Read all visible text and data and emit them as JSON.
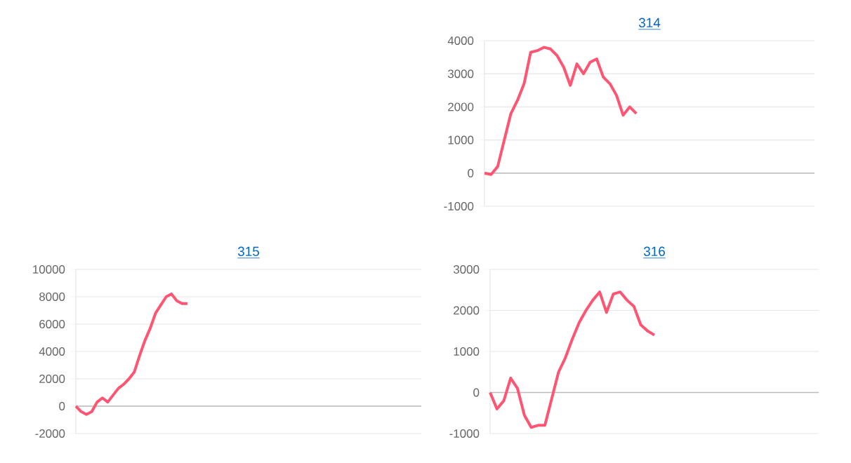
{
  "chart_data": [
    {
      "type": "line",
      "title": "314",
      "categories": [
        null,
        null,
        null,
        null,
        null,
        null,
        null,
        null,
        null,
        null,
        null,
        null,
        null,
        null,
        null,
        null,
        null,
        null,
        null,
        null,
        null,
        null,
        null,
        null,
        null,
        null,
        null,
        null,
        null,
        null,
        null,
        null,
        null,
        null,
        null,
        null,
        null,
        null,
        null,
        null,
        null,
        null,
        null,
        null,
        null,
        null,
        null,
        null,
        null,
        null,
        null
      ],
      "series": [
        {
          "color": "#ff5573",
          "values": [
            0,
            -40,
            200,
            1000,
            1800,
            2200,
            2700,
            3650,
            3700,
            3800,
            3750,
            3550,
            3200,
            2650,
            3300,
            3000,
            3350,
            3450,
            2900,
            2700,
            2350,
            1750,
            2000,
            1800,
            null,
            null,
            null,
            null,
            null,
            null,
            null,
            null,
            null,
            null,
            null,
            null,
            null,
            null,
            null,
            null,
            null,
            null,
            null,
            null,
            null,
            null,
            null,
            null,
            null,
            null,
            null
          ]
        }
      ],
      "ylim": [
        -1000,
        4000
      ],
      "yticks": [
        -1000,
        0,
        1000,
        2000,
        3000,
        4000
      ],
      "grid": "y",
      "tick_labels": "y"
    },
    {
      "type": "line",
      "title": "315",
      "categories": [
        null,
        null,
        null,
        null,
        null,
        null,
        null,
        null,
        null,
        null,
        null,
        null,
        null,
        null,
        null,
        null,
        null,
        null,
        null,
        null,
        null,
        null,
        null,
        null,
        null,
        null,
        null,
        null,
        null,
        null,
        null,
        null,
        null,
        null,
        null,
        null,
        null,
        null,
        null,
        null,
        null,
        null,
        null,
        null,
        null,
        null,
        null,
        null,
        null,
        null,
        null,
        null,
        null,
        null,
        null,
        null,
        null,
        null,
        null,
        null,
        null,
        null,
        null,
        null,
        null,
        null
      ],
      "series": [
        {
          "color": "#ff5573",
          "values": [
            0,
            -400,
            -600,
            -400,
            300,
            600,
            300,
            800,
            1300,
            1600,
            2000,
            2500,
            3700,
            4800,
            5700,
            6800,
            7400,
            8000,
            8200,
            7700,
            7500,
            7500,
            null,
            null,
            null,
            null,
            null,
            null,
            null,
            null,
            null,
            null,
            null,
            null,
            null,
            null,
            null,
            null,
            null,
            null,
            null,
            null,
            null,
            null,
            null,
            null,
            null,
            null,
            null,
            null,
            null,
            null,
            null,
            null,
            null,
            null,
            null,
            null,
            null,
            null,
            null,
            null,
            null,
            null,
            null,
            null
          ]
        }
      ],
      "ylim": [
        -2000,
        10000
      ],
      "yticks": [
        -2000,
        0,
        2000,
        4000,
        6000,
        8000,
        10000
      ],
      "grid": "y",
      "tick_labels": "y"
    },
    {
      "type": "line",
      "title": "316",
      "categories": [
        null,
        null,
        null,
        null,
        null,
        null,
        null,
        null,
        null,
        null,
        null,
        null,
        null,
        null,
        null,
        null,
        null,
        null,
        null,
        null,
        null,
        null,
        null,
        null,
        null,
        null,
        null,
        null,
        null,
        null,
        null,
        null,
        null,
        null,
        null,
        null,
        null,
        null,
        null,
        null,
        null,
        null,
        null,
        null,
        null,
        null,
        null,
        null,
        null
      ],
      "series": [
        {
          "color": "#ff5573",
          "values": [
            0,
            -400,
            -200,
            350,
            100,
            -550,
            -850,
            -800,
            -800,
            -150,
            500,
            850,
            1300,
            1700,
            2000,
            2250,
            2450,
            1950,
            2400,
            2450,
            2250,
            2100,
            1650,
            1500,
            1400,
            null,
            null,
            null,
            null,
            null,
            null,
            null,
            null,
            null,
            null,
            null,
            null,
            null,
            null,
            null,
            null,
            null,
            null,
            null,
            null,
            null,
            null,
            null,
            null
          ]
        }
      ],
      "ylim": [
        -1000,
        3000
      ],
      "yticks": [
        -1000,
        0,
        1000,
        2000,
        3000
      ],
      "grid": "y",
      "tick_labels": "y"
    }
  ]
}
